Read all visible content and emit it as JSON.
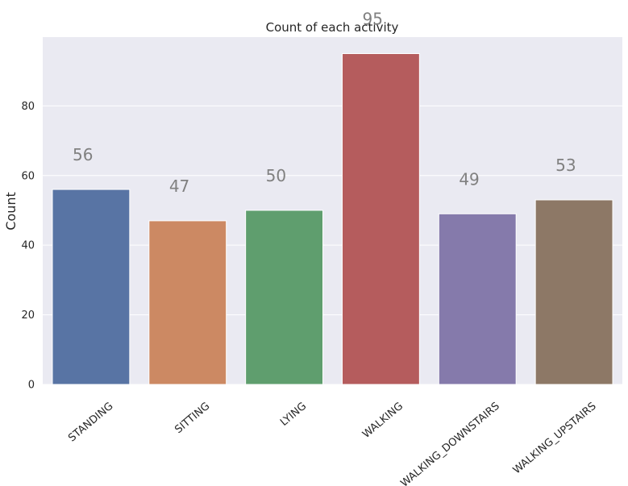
{
  "chart_data": {
    "type": "bar",
    "title": "Count of each activity",
    "xlabel": "",
    "ylabel": "Count",
    "categories": [
      "STANDING",
      "SITTING",
      "LYING",
      "WALKING",
      "WALKING_DOWNSTAIRS",
      "WALKING_UPSTAIRS"
    ],
    "values": [
      56,
      47,
      50,
      95,
      49,
      53
    ],
    "data_labels": [
      "56",
      "47",
      "50",
      "95",
      "49",
      "53"
    ],
    "colors": [
      "#5874a4",
      "#cc8963",
      "#5f9e6e",
      "#b55c5d",
      "#857aab",
      "#8d7866"
    ],
    "ylim": [
      0,
      99.75
    ],
    "yticks": [
      0,
      20,
      40,
      60,
      80
    ],
    "ytick_labels": [
      "0",
      "20",
      "40",
      "60",
      "80"
    ],
    "grid": true,
    "background": "#eaeaf2",
    "label_color": "#808080"
  }
}
